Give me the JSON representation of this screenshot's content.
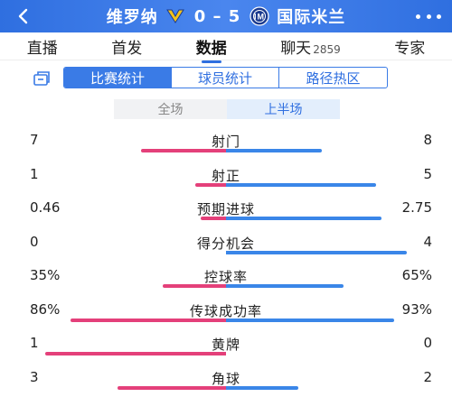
{
  "header": {
    "home_team": "维罗纳",
    "score": "0 – 5",
    "away_team": "国际米兰",
    "home_badge_color": "#f2c21b",
    "away_badge_color": "#1a3a8f"
  },
  "tabs": [
    {
      "label": "直播",
      "sub": "",
      "active": false
    },
    {
      "label": "首发",
      "sub": "",
      "active": false
    },
    {
      "label": "数据",
      "sub": "",
      "active": true
    },
    {
      "label": "聊天",
      "sub": "2859",
      "active": false
    },
    {
      "label": "专家",
      "sub": "",
      "active": false
    }
  ],
  "subnav": [
    {
      "label": "比赛统计",
      "active": true
    },
    {
      "label": "球员统计",
      "active": false
    },
    {
      "label": "路径热区",
      "active": false
    }
  ],
  "period": {
    "full": "全场",
    "first_half": "上半场",
    "active": "first_half"
  },
  "colors": {
    "accent": "#2f6fe0",
    "home_bar": "#e4407a",
    "away_bar": "#3a86e8"
  },
  "stats": [
    {
      "label": "射门",
      "left": "7",
      "right": "8",
      "left_frac": 0.47,
      "right_frac": 0.53
    },
    {
      "label": "射正",
      "left": "1",
      "right": "5",
      "left_frac": 0.17,
      "right_frac": 0.83
    },
    {
      "label": "预期进球",
      "left": "0.46",
      "right": "2.75",
      "left_frac": 0.14,
      "right_frac": 0.86
    },
    {
      "label": "得分机会",
      "left": "0",
      "right": "4",
      "left_frac": 0.0,
      "right_frac": 1.0
    },
    {
      "label": "控球率",
      "left": "35%",
      "right": "65%",
      "left_frac": 0.35,
      "right_frac": 0.65
    },
    {
      "label": "传球成功率",
      "left": "86%",
      "right": "93%",
      "left_frac": 0.86,
      "right_frac": 0.93
    },
    {
      "label": "黄牌",
      "left": "1",
      "right": "0",
      "left_frac": 1.0,
      "right_frac": 0.0
    },
    {
      "label": "角球",
      "left": "3",
      "right": "2",
      "left_frac": 0.6,
      "right_frac": 0.4
    }
  ]
}
